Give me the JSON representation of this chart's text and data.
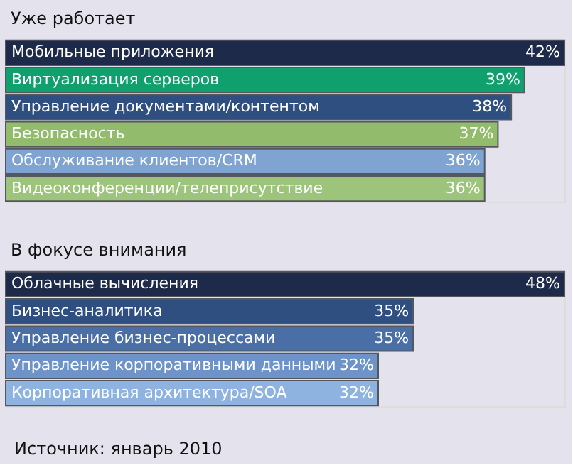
{
  "chart_data": [
    {
      "type": "bar",
      "orientation": "horizontal",
      "title": "Уже работает",
      "categories": [
        "Мобильные приложения",
        "Виртуализация серверов",
        "Управление документами/контентом",
        "Безопасность",
        "Обслуживание клиентов/CRM",
        "Видеоконференции/телеприсутствие"
      ],
      "values": [
        42,
        39,
        38,
        37,
        36,
        36
      ],
      "value_labels": [
        "42%",
        "39%",
        "38%",
        "37%",
        "36%",
        "36%"
      ],
      "colors": [
        "#1e2a4a",
        "#0fa06e",
        "#2f4f80",
        "#92bb6c",
        "#7fa4d2",
        "#9cc47a"
      ]
    },
    {
      "type": "bar",
      "orientation": "horizontal",
      "title": "В фокусе внимания",
      "categories": [
        "Облачные вычисления",
        "Бизнес-аналитика",
        "Управление бизнес-процессами",
        "Управление корпоративными данными",
        "Корпоративная архитектура/SOA"
      ],
      "values": [
        48,
        35,
        35,
        32,
        32
      ],
      "value_labels": [
        "48%",
        "35%",
        "35%",
        "32%",
        "32%"
      ],
      "colors": [
        "#1e2a4a",
        "#2f4f80",
        "#4a6fa6",
        "#6d93c8",
        "#8fb3e0"
      ],
      "annotations": [
        "Источник: январь 2010"
      ]
    }
  ]
}
